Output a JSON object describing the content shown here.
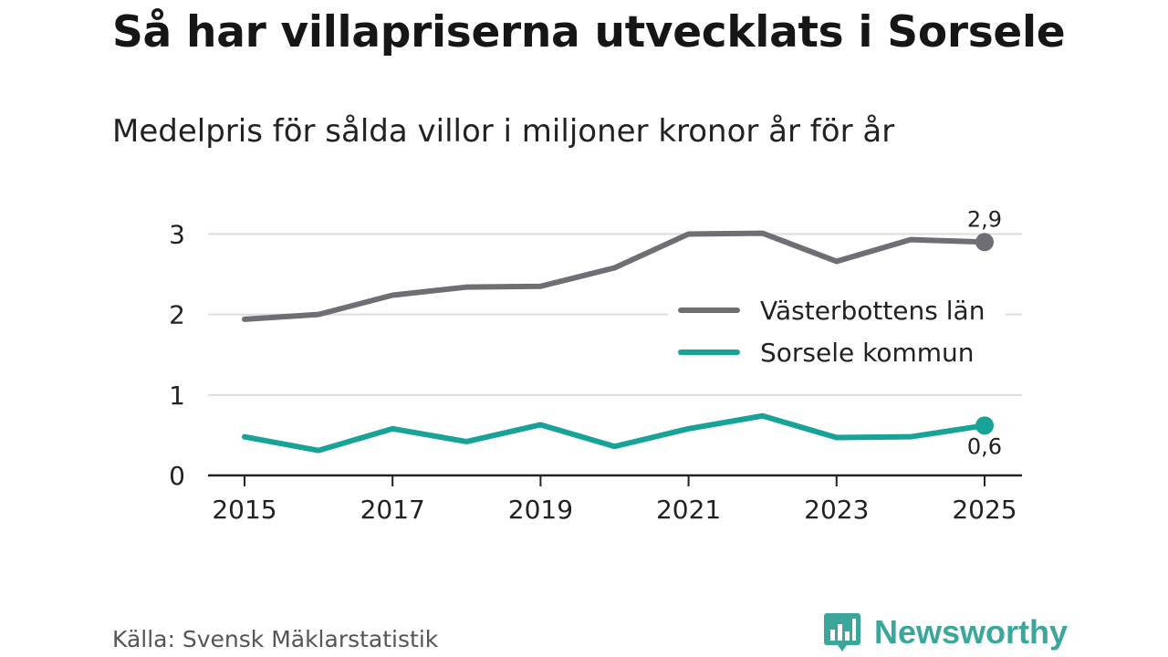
{
  "title": "Så har villapriserna utvecklats i Sorsele",
  "subtitle": "Medelpris för sålda villor i miljoner kronor år för år",
  "source": "Källa: Svensk Mäklarstatistik",
  "brand": {
    "name": "Newsworthy",
    "icon": "newsworthy-logo-icon",
    "color": "#3aa79a"
  },
  "chart_data": {
    "type": "line",
    "x": [
      2015,
      2016,
      2017,
      2018,
      2019,
      2020,
      2021,
      2022,
      2023,
      2024,
      2025
    ],
    "x_tick_labels": [
      "2015",
      "2017",
      "2019",
      "2021",
      "2023",
      "2025"
    ],
    "y_tick_labels": [
      "0",
      "1",
      "2",
      "3"
    ],
    "ylim": [
      0,
      3.3
    ],
    "grid": true,
    "legend_position": "right",
    "series": [
      {
        "name": "Västerbottens län",
        "color": "#6f6e75",
        "values": [
          1.94,
          2.0,
          2.24,
          2.34,
          2.35,
          2.58,
          3.0,
          3.01,
          2.66,
          2.93,
          2.9
        ],
        "end_label": "2,9",
        "end_label_position": "above"
      },
      {
        "name": "Sorsele kommun",
        "color": "#17a398",
        "values": [
          0.48,
          0.31,
          0.58,
          0.42,
          0.63,
          0.36,
          0.58,
          0.74,
          0.47,
          0.48,
          0.62
        ],
        "end_label": "0,6",
        "end_label_position": "below"
      }
    ]
  }
}
